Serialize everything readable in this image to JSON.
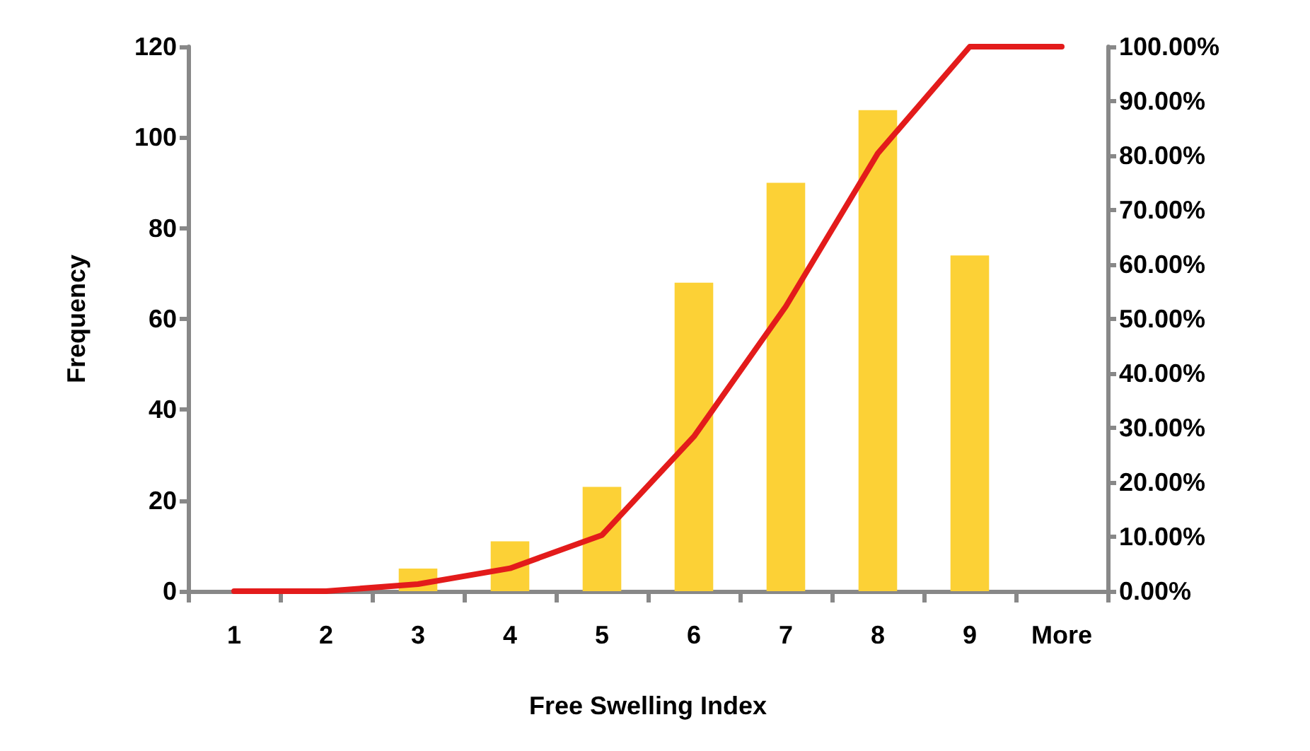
{
  "chart_data": {
    "type": "bar",
    "xlabel": "Free Swelling Index",
    "ylabel": "Frequency",
    "categories": [
      "1",
      "2",
      "3",
      "4",
      "5",
      "6",
      "7",
      "8",
      "9",
      "More"
    ],
    "series": [
      {
        "color": "#fcd136",
        "values": [
          0,
          0,
          5,
          11,
          23,
          68,
          90,
          106,
          74,
          0
        ]
      },
      {
        "type": "line",
        "axis": "y2",
        "color": "#e31b1b",
        "values": [
          0,
          0,
          1.3,
          4.2,
          10.3,
          28.4,
          52.3,
          80.4,
          100,
          100
        ]
      }
    ],
    "ylim": [
      0,
      120
    ],
    "yticks": [
      0,
      20,
      40,
      60,
      80,
      100,
      120
    ],
    "y2lim": [
      0,
      100
    ],
    "y2ticks": [
      {
        "value": 0,
        "label": "0.00%"
      },
      {
        "value": 10,
        "label": "10.00%"
      },
      {
        "value": 20,
        "label": "20.00%"
      },
      {
        "value": 30,
        "label": "30.00%"
      },
      {
        "value": 40,
        "label": "40.00%"
      },
      {
        "value": 50,
        "label": "50.00%"
      },
      {
        "value": 60,
        "label": "60.00%"
      },
      {
        "value": 70,
        "label": "70.00%"
      },
      {
        "value": 80,
        "label": "80.00%"
      },
      {
        "value": 90,
        "label": "90.00%"
      },
      {
        "value": 100,
        "label": "100.00%"
      }
    ],
    "grid": false,
    "marker": "none",
    "line_style": "solid"
  }
}
